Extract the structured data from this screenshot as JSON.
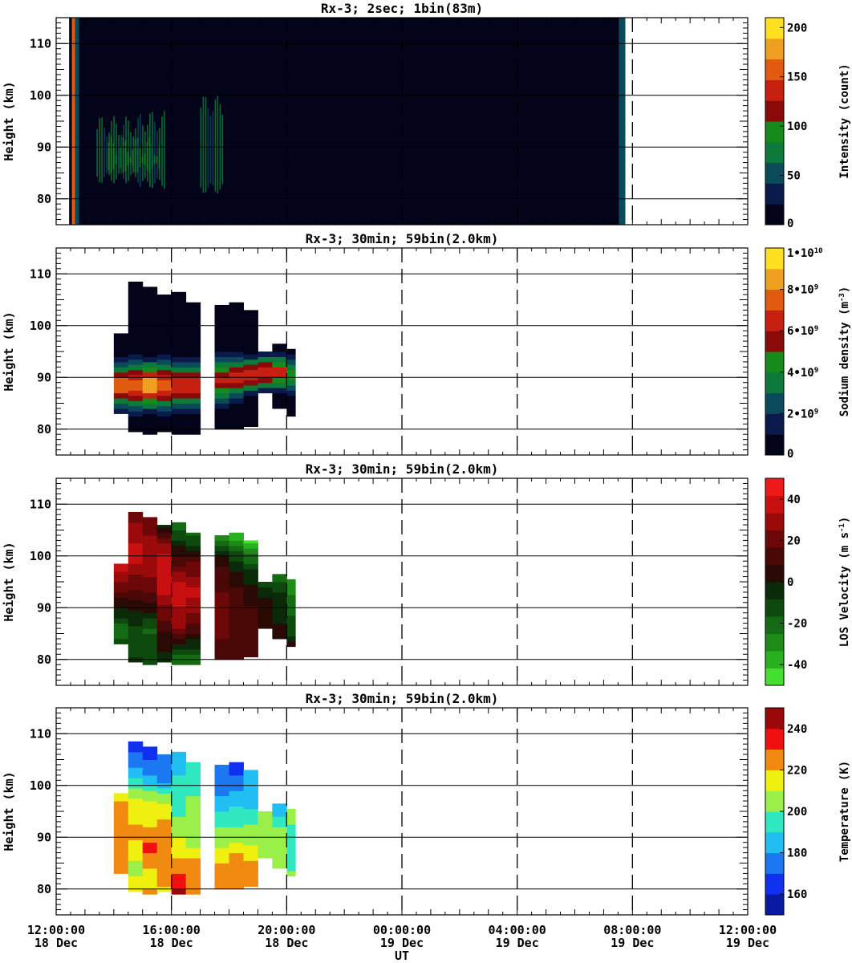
{
  "figure": {
    "xlabel": "UT",
    "x_ticks": [
      {
        "time": "12:00:00",
        "date": "18 Dec"
      },
      {
        "time": "16:00:00",
        "date": "18 Dec"
      },
      {
        "time": "20:00:00",
        "date": "18 Dec"
      },
      {
        "time": "00:00:00",
        "date": "19 Dec"
      },
      {
        "time": "04:00:00",
        "date": "19 Dec"
      },
      {
        "time": "08:00:00",
        "date": "19 Dec"
      },
      {
        "time": "12:00:00",
        "date": "19 Dec"
      }
    ]
  },
  "chart_data": [
    {
      "type": "heatmap",
      "title": "Rx-3;  2sec; 1bin(83m)",
      "ylabel": "Height (km)",
      "y_ticks": [
        "80",
        "90",
        "100",
        "110"
      ],
      "x_range_hours": [
        12,
        36
      ],
      "ylim": [
        75,
        115
      ],
      "colorbar_label": "Intensity (count)",
      "colorbar_ticks": [
        "0",
        "50",
        "100",
        "150",
        "200"
      ],
      "colorbar_range": [
        0,
        210
      ],
      "colors": [
        "#03031a",
        "#0a1a4a",
        "#0a4a5a",
        "#0b7a3a",
        "#168a1a",
        "#8a0a0a",
        "#c82010",
        "#e05a10",
        "#f0a020",
        "#ffe020"
      ],
      "observation_window_hours": [
        12.45,
        31.75
      ],
      "background_value": 3,
      "bright_stripe_hour": 12.6,
      "grid": "on",
      "cells": [
        {
          "x0": 13.4,
          "x1": 14.9,
          "y0": 84,
          "y1": 94,
          "v": 80
        },
        {
          "x0": 14.9,
          "x1": 15.8,
          "y0": 83,
          "y1": 95,
          "v": 80
        },
        {
          "x0": 17.0,
          "x1": 17.8,
          "y0": 82,
          "y1": 98,
          "v": 75
        },
        {
          "x0": 13.8,
          "x1": 15.6,
          "y0": 86,
          "y1": 90,
          "v": 100
        }
      ]
    },
    {
      "type": "heatmap",
      "title": "Rx-3; 30min; 59bin(2.0km)",
      "ylabel": "Height (km)",
      "y_ticks": [
        "80",
        "90",
        "100",
        "110"
      ],
      "x_range_hours": [
        12,
        36
      ],
      "ylim": [
        75,
        115
      ],
      "colorbar_label": "Sodium density (m⁻³)",
      "colorbar_ticks": [
        "0",
        "2•10⁹",
        "4•10⁹",
        "6•10⁹",
        "8•10⁹",
        "1•10¹⁰"
      ],
      "colorbar_range": [
        0,
        10000000000.0
      ],
      "colors": [
        "#03031a",
        "#0a1a4a",
        "#0a4a5a",
        "#0b7a3a",
        "#168a1a",
        "#8a0a0a",
        "#c82010",
        "#e05a10",
        "#f0a020",
        "#ffe020"
      ],
      "grid": "on",
      "columns": [
        {
          "x0": 14.0,
          "x1": 14.5,
          "ytop": 98.5,
          "ybot": 83.0,
          "peak_y": 88.5,
          "peak": 7800000000.0,
          "width": 3.5
        },
        {
          "x0": 14.5,
          "x1": 15.0,
          "ytop": 108.5,
          "ybot": 79.5,
          "peak_y": 88.5,
          "peak": 8000000000.0,
          "width": 4.0
        },
        {
          "x0": 15.0,
          "x1": 15.5,
          "ytop": 107.5,
          "ybot": 79.0,
          "peak_y": 88.5,
          "peak": 8600000000.0,
          "width": 4.0
        },
        {
          "x0": 15.5,
          "x1": 16.0,
          "ytop": 106.0,
          "ybot": 79.5,
          "peak_y": 88.5,
          "peak": 7400000000.0,
          "width": 4.0
        },
        {
          "x0": 16.0,
          "x1": 16.5,
          "ytop": 106.5,
          "ybot": 79.0,
          "peak_y": 88.5,
          "peak": 6600000000.0,
          "width": 4.0
        },
        {
          "x0": 16.5,
          "x1": 17.0,
          "ytop": 104.5,
          "ybot": 79.0,
          "peak_y": 88.5,
          "peak": 6600000000.0,
          "width": 3.8
        },
        {
          "x0": 17.5,
          "x1": 18.0,
          "ytop": 104.0,
          "ybot": 80.0,
          "peak_y": 89.5,
          "peak": 6200000000.0,
          "width": 3.8
        },
        {
          "x0": 18.0,
          "x1": 18.5,
          "ytop": 104.5,
          "ybot": 80.0,
          "peak_y": 90.0,
          "peak": 6400000000.0,
          "width": 3.5
        },
        {
          "x0": 18.5,
          "x1": 19.0,
          "ytop": 103.0,
          "ybot": 80.5,
          "peak_y": 90.5,
          "peak": 6400000000.0,
          "width": 3.2
        },
        {
          "x0": 19.0,
          "x1": 19.5,
          "ytop": 95.0,
          "ybot": 87.0,
          "peak_y": 91.0,
          "peak": 6600000000.0,
          "width": 3.0
        },
        {
          "x0": 19.5,
          "x1": 20.0,
          "ytop": 96.5,
          "ybot": 84.0,
          "peak_y": 91.0,
          "peak": 6200000000.0,
          "width": 3.0
        },
        {
          "x0": 20.0,
          "x1": 20.3,
          "ytop": 95.5,
          "ybot": 82.5,
          "peak_y": 90.5,
          "peak": 5000000000.0,
          "width": 3.0
        }
      ]
    },
    {
      "type": "heatmap",
      "title": "Rx-3; 30min; 59bin(2.0km)",
      "ylabel": "Height (km)",
      "y_ticks": [
        "80",
        "90",
        "100",
        "110"
      ],
      "x_range_hours": [
        12,
        36
      ],
      "ylim": [
        75,
        115
      ],
      "colorbar_label": "LOS Velocity (m s⁻¹)",
      "colorbar_ticks": [
        "-40",
        "-20",
        "0",
        "20",
        "40"
      ],
      "colorbar_range": [
        -50,
        50
      ],
      "colors": [
        "#44e030",
        "#28b020",
        "#1e8a18",
        "#156a14",
        "#0e4a0e",
        "#0a2a0a",
        "#2a0a04",
        "#4a0806",
        "#6e0808",
        "#9a0a0a",
        "#c81010",
        "#ee1a1a"
      ],
      "grid": "on",
      "columns": [
        {
          "x0": 14.0,
          "x1": 14.5,
          "ytop": 98.5,
          "ybot": 83.0,
          "profile": [
            [
              98,
              40
            ],
            [
              92,
              10
            ],
            [
              86,
              -20
            ],
            [
              83,
              -15
            ]
          ]
        },
        {
          "x0": 14.5,
          "x1": 15.0,
          "ytop": 108.5,
          "ybot": 79.5,
          "profile": [
            [
              108,
              22
            ],
            [
              100,
              38
            ],
            [
              93,
              15
            ],
            [
              86,
              -12
            ],
            [
              80,
              -8
            ]
          ]
        },
        {
          "x0": 15.0,
          "x1": 15.5,
          "ytop": 107.5,
          "ybot": 79.0,
          "profile": [
            [
              107,
              20
            ],
            [
              100,
              32
            ],
            [
              93,
              18
            ],
            [
              86,
              -18
            ],
            [
              80,
              -10
            ]
          ]
        },
        {
          "x0": 15.5,
          "x1": 16.0,
          "ytop": 106.0,
          "ybot": 79.5,
          "profile": [
            [
              106,
              -5
            ],
            [
              100,
              40
            ],
            [
              93,
              35
            ],
            [
              86,
              10
            ],
            [
              80,
              -5
            ]
          ]
        },
        {
          "x0": 16.0,
          "x1": 16.5,
          "ytop": 106.5,
          "ybot": 79.0,
          "profile": [
            [
              106,
              -22
            ],
            [
              100,
              10
            ],
            [
              93,
              40
            ],
            [
              86,
              25
            ],
            [
              80,
              -22
            ]
          ]
        },
        {
          "x0": 16.5,
          "x1": 17.0,
          "ytop": 104.5,
          "ybot": 79.0,
          "profile": [
            [
              104,
              -18
            ],
            [
              98,
              20
            ],
            [
              93,
              35
            ],
            [
              86,
              15
            ],
            [
              80,
              -22
            ]
          ]
        },
        {
          "x0": 17.5,
          "x1": 18.0,
          "ytop": 104.0,
          "ybot": 80.0,
          "profile": [
            [
              104,
              -30
            ],
            [
              98,
              10
            ],
            [
              92,
              18
            ],
            [
              86,
              20
            ],
            [
              81,
              10
            ]
          ]
        },
        {
          "x0": 18.0,
          "x1": 18.5,
          "ytop": 104.5,
          "ybot": 80.0,
          "profile": [
            [
              104,
              -40
            ],
            [
              99,
              -5
            ],
            [
              93,
              10
            ],
            [
              86,
              15
            ],
            [
              81,
              12
            ]
          ]
        },
        {
          "x0": 18.5,
          "x1": 19.0,
          "ytop": 103.0,
          "ybot": 80.5,
          "profile": [
            [
              103,
              -45
            ],
            [
              98,
              -10
            ],
            [
              92,
              5
            ],
            [
              86,
              15
            ],
            [
              81,
              10
            ]
          ]
        },
        {
          "x0": 19.0,
          "x1": 19.5,
          "ytop": 95.0,
          "ybot": 86.0,
          "profile": [
            [
              95,
              -15
            ],
            [
              91,
              5
            ],
            [
              87,
              5
            ]
          ]
        },
        {
          "x0": 19.5,
          "x1": 20.0,
          "ytop": 96.5,
          "ybot": 84.0,
          "profile": [
            [
              96,
              -22
            ],
            [
              92,
              -5
            ],
            [
              87,
              0
            ],
            [
              84,
              5
            ]
          ]
        },
        {
          "x0": 20.0,
          "x1": 20.3,
          "ytop": 95.5,
          "ybot": 82.5,
          "profile": [
            [
              95,
              -30
            ],
            [
              90,
              -20
            ],
            [
              85,
              -10
            ],
            [
              83,
              5
            ]
          ]
        }
      ]
    },
    {
      "type": "heatmap",
      "title": "Rx-3; 30min; 59bin(2.0km)",
      "ylabel": "Height (km)",
      "y_ticks": [
        "80",
        "90",
        "100",
        "110"
      ],
      "x_range_hours": [
        12,
        36
      ],
      "ylim": [
        75,
        115
      ],
      "colorbar_label": "Temperature (K)",
      "colorbar_ticks": [
        "160",
        "180",
        "200",
        "220",
        "240"
      ],
      "colorbar_range": [
        150,
        250
      ],
      "colors": [
        "#0a1aa0",
        "#1030f0",
        "#1c78f0",
        "#20bef2",
        "#30e8c0",
        "#9af048",
        "#f0f010",
        "#f08a10",
        "#f01010",
        "#9a0808"
      ],
      "grid": "on",
      "columns": [
        {
          "x0": 14.0,
          "x1": 14.5,
          "ytop": 98.5,
          "ybot": 83.0,
          "profile": [
            [
              98,
              218
            ],
            [
              94,
              225
            ],
            [
              88,
              222
            ],
            [
              84,
              228
            ]
          ]
        },
        {
          "x0": 14.5,
          "x1": 15.0,
          "ytop": 108.5,
          "ybot": 79.5,
          "profile": [
            [
              108,
              165
            ],
            [
              102,
              185
            ],
            [
              97,
              215
            ],
            [
              90,
              222
            ],
            [
              84,
              205
            ],
            [
              80,
              218
            ]
          ]
        },
        {
          "x0": 15.0,
          "x1": 15.5,
          "ytop": 107.5,
          "ybot": 79.0,
          "profile": [
            [
              107,
              162
            ],
            [
              102,
              180
            ],
            [
              97,
              210
            ],
            [
              92,
              220
            ],
            [
              88,
              235
            ],
            [
              83,
              215
            ],
            [
              80,
              220
            ]
          ]
        },
        {
          "x0": 15.5,
          "x1": 16.0,
          "ytop": 106.0,
          "ybot": 79.5,
          "profile": [
            [
              106,
              175
            ],
            [
              101,
              178
            ],
            [
              96,
              215
            ],
            [
              90,
              225
            ],
            [
              85,
              228
            ],
            [
              80,
              218
            ]
          ]
        },
        {
          "x0": 16.0,
          "x1": 16.5,
          "ytop": 106.5,
          "ybot": 79.0,
          "profile": [
            [
              106,
              180
            ],
            [
              100,
              195
            ],
            [
              94,
              200
            ],
            [
              88,
              215
            ],
            [
              84,
              228
            ],
            [
              80,
              240
            ]
          ]
        },
        {
          "x0": 16.5,
          "x1": 17.0,
          "ytop": 104.5,
          "ybot": 79.0,
          "profile": [
            [
              104,
              198
            ],
            [
              98,
              200
            ],
            [
              92,
              200
            ],
            [
              88,
              210
            ],
            [
              84,
              228
            ],
            [
              80,
              228
            ]
          ]
        },
        {
          "x0": 17.5,
          "x1": 18.0,
          "ytop": 104.0,
          "ybot": 80.0,
          "profile": [
            [
              104,
              180
            ],
            [
              99,
              175
            ],
            [
              94,
              195
            ],
            [
              90,
              205
            ],
            [
              86,
              218
            ],
            [
              81,
              225
            ]
          ]
        },
        {
          "x0": 18.0,
          "x1": 18.5,
          "ytop": 104.5,
          "ybot": 80.0,
          "profile": [
            [
              104,
              165
            ],
            [
              99,
              180
            ],
            [
              94,
              195
            ],
            [
              90,
              205
            ],
            [
              86,
              225
            ],
            [
              81,
              222
            ]
          ]
        },
        {
          "x0": 18.5,
          "x1": 19.0,
          "ytop": 103.0,
          "ybot": 80.5,
          "profile": [
            [
              103,
              185
            ],
            [
              99,
              180
            ],
            [
              94,
              195
            ],
            [
              90,
              205
            ],
            [
              86,
              218
            ],
            [
              81,
              228
            ]
          ]
        },
        {
          "x0": 19.0,
          "x1": 19.5,
          "ytop": 95.0,
          "ybot": 86.0,
          "profile": [
            [
              95,
              205
            ],
            [
              91,
              205
            ],
            [
              87,
              205
            ]
          ]
        },
        {
          "x0": 19.5,
          "x1": 20.0,
          "ytop": 96.5,
          "ybot": 84.0,
          "profile": [
            [
              96,
              180
            ],
            [
              92,
              200
            ],
            [
              87,
              205
            ],
            [
              84,
              205
            ]
          ]
        },
        {
          "x0": 20.0,
          "x1": 20.3,
          "ytop": 95.5,
          "ybot": 82.5,
          "profile": [
            [
              95,
              205
            ],
            [
              91,
              195
            ],
            [
              87,
              190
            ],
            [
              83,
              200
            ]
          ]
        }
      ]
    }
  ]
}
